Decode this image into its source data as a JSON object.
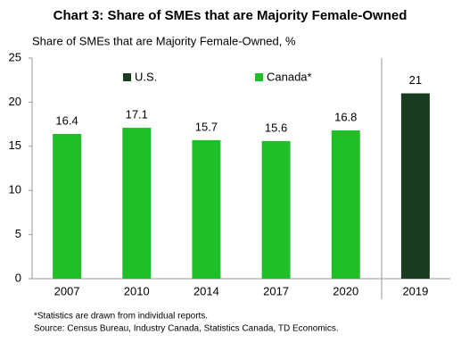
{
  "chart_data": {
    "type": "bar",
    "title": "Chart 3: Share of SMEs that are Majority Female-Owned",
    "y_label": "Share of SMEs that are Majority Female-Owned, %",
    "categories": [
      "2007",
      "2010",
      "2014",
      "2017",
      "2020",
      "2019"
    ],
    "series": [
      {
        "name": "U.S.",
        "color": "#1a3d22",
        "values": [
          null,
          null,
          null,
          null,
          null,
          21
        ]
      },
      {
        "name": "Canada*",
        "color": "#1fbf2a",
        "values": [
          16.4,
          17.1,
          15.7,
          15.6,
          16.8,
          null
        ]
      }
    ],
    "ylim": [
      0,
      25
    ],
    "yticks": [
      0,
      5,
      10,
      15,
      20,
      25
    ],
    "grid": false,
    "legend": "top",
    "footnotes": [
      "*Statistics are drawn from individual reports.",
      "Source: Census Bureau, Industry Canada, Statistics Canada, TD Economics."
    ]
  }
}
